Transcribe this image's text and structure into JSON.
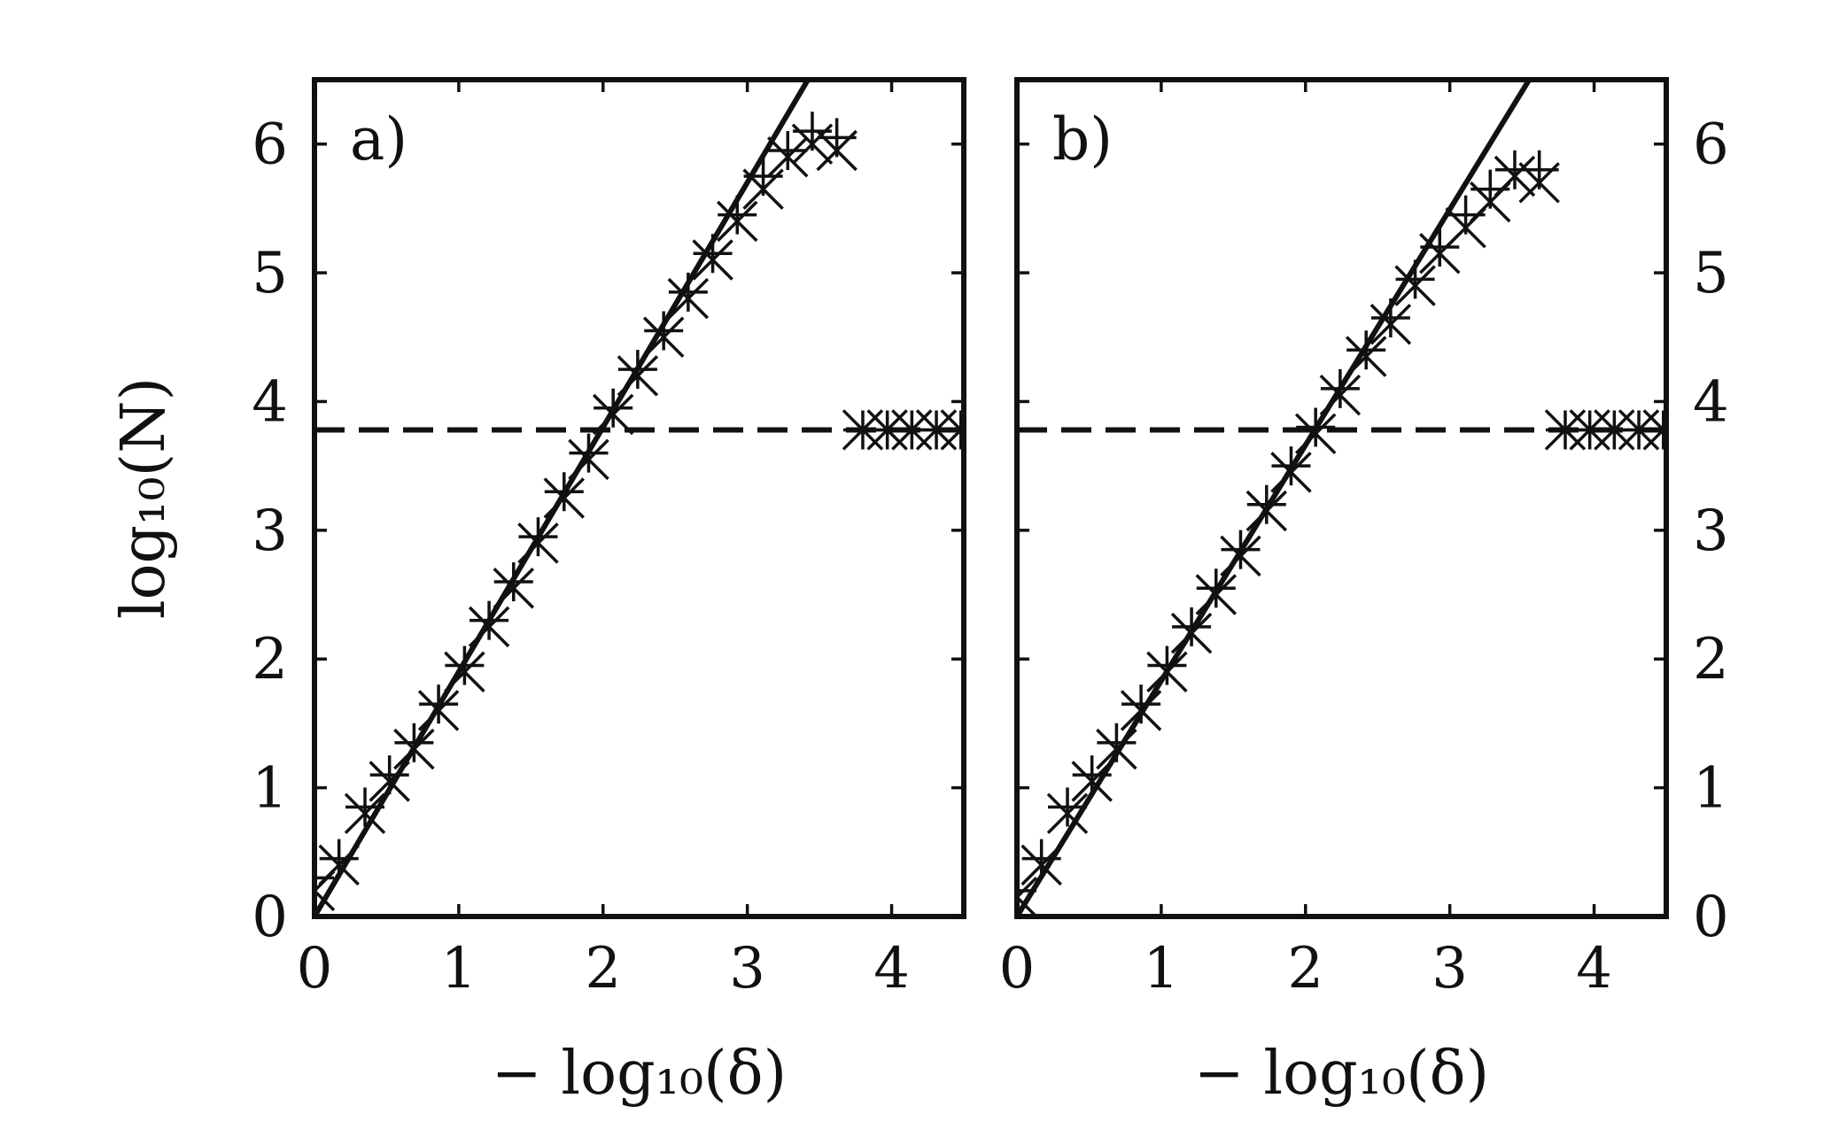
{
  "chart_data": [
    {
      "type": "scatter",
      "panel_label": "a)",
      "xlabel": "− log₁₀(δ)",
      "ylabel": "log₁₀(N)",
      "xlim": [
        0,
        4.5
      ],
      "ylim": [
        0,
        6.5
      ],
      "xticks": [
        0,
        1,
        2,
        3,
        4
      ],
      "yticks": [
        0,
        1,
        2,
        3,
        4,
        5,
        6
      ],
      "ytick_side": "left",
      "fit_line": {
        "x": [
          0,
          3.42
        ],
        "y": [
          0,
          6.5
        ]
      },
      "dashed_line_y": 3.78,
      "series": [
        {
          "marker": "plus",
          "x": [
            0.0,
            0.17,
            0.35,
            0.52,
            0.69,
            0.86,
            1.04,
            1.21,
            1.38,
            1.55,
            1.73,
            1.9,
            2.07,
            2.24,
            2.42,
            2.59,
            2.76,
            2.93,
            3.11,
            3.28,
            3.45,
            3.62,
            3.8,
            3.97,
            4.14,
            4.31,
            4.48
          ],
          "y": [
            0.3,
            0.45,
            0.85,
            1.1,
            1.35,
            1.65,
            1.95,
            2.3,
            2.6,
            2.95,
            3.3,
            3.6,
            3.95,
            4.25,
            4.55,
            4.85,
            5.15,
            5.45,
            5.75,
            5.95,
            6.1,
            6.05,
            3.78,
            3.78,
            3.78,
            3.78,
            3.78
          ]
        },
        {
          "marker": "x",
          "x": [
            0.0,
            0.17,
            0.35,
            0.52,
            0.69,
            0.86,
            1.04,
            1.21,
            1.38,
            1.55,
            1.73,
            1.9,
            2.07,
            2.24,
            2.42,
            2.59,
            2.76,
            2.93,
            3.11,
            3.28,
            3.45,
            3.62,
            3.8,
            3.97,
            4.14,
            4.31,
            4.48
          ],
          "y": [
            0.2,
            0.4,
            0.8,
            1.05,
            1.3,
            1.6,
            1.9,
            2.25,
            2.55,
            2.9,
            3.25,
            3.55,
            3.9,
            4.2,
            4.5,
            4.8,
            5.1,
            5.4,
            5.65,
            5.9,
            6.0,
            5.95,
            3.78,
            3.78,
            3.78,
            3.78,
            3.78
          ]
        }
      ]
    },
    {
      "type": "scatter",
      "panel_label": "b)",
      "xlabel": "− log₁₀(δ)",
      "ylabel": "",
      "xlim": [
        0,
        4.5
      ],
      "ylim": [
        0,
        6.5
      ],
      "xticks": [
        0,
        1,
        2,
        3,
        4
      ],
      "yticks": [
        0,
        1,
        2,
        3,
        4,
        5,
        6
      ],
      "ytick_side": "right",
      "fit_line": {
        "x": [
          0,
          3.55
        ],
        "y": [
          0,
          6.5
        ]
      },
      "dashed_line_y": 3.78,
      "series": [
        {
          "marker": "plus",
          "x": [
            0.0,
            0.17,
            0.35,
            0.52,
            0.69,
            0.86,
            1.04,
            1.21,
            1.38,
            1.55,
            1.73,
            1.9,
            2.07,
            2.24,
            2.42,
            2.59,
            2.76,
            2.93,
            3.11,
            3.28,
            3.45,
            3.62,
            3.8,
            3.97,
            4.14,
            4.31,
            4.48
          ],
          "y": [
            0.2,
            0.45,
            0.85,
            1.1,
            1.35,
            1.65,
            1.95,
            2.25,
            2.55,
            2.85,
            3.2,
            3.5,
            3.8,
            4.1,
            4.4,
            4.65,
            4.95,
            5.2,
            5.45,
            5.65,
            5.8,
            5.8,
            3.78,
            3.78,
            3.78,
            3.78,
            3.78
          ]
        },
        {
          "marker": "x",
          "x": [
            0.0,
            0.17,
            0.35,
            0.52,
            0.69,
            0.86,
            1.04,
            1.21,
            1.38,
            1.55,
            1.73,
            1.9,
            2.07,
            2.24,
            2.42,
            2.59,
            2.76,
            2.93,
            3.11,
            3.28,
            3.45,
            3.62,
            3.8,
            3.97,
            4.14,
            4.31,
            4.48
          ],
          "y": [
            0.15,
            0.4,
            0.8,
            1.05,
            1.3,
            1.6,
            1.9,
            2.2,
            2.5,
            2.8,
            3.15,
            3.45,
            3.75,
            4.05,
            4.35,
            4.6,
            4.9,
            5.15,
            5.35,
            5.55,
            5.75,
            5.7,
            3.78,
            3.78,
            3.78,
            3.78,
            3.78
          ]
        }
      ]
    }
  ]
}
